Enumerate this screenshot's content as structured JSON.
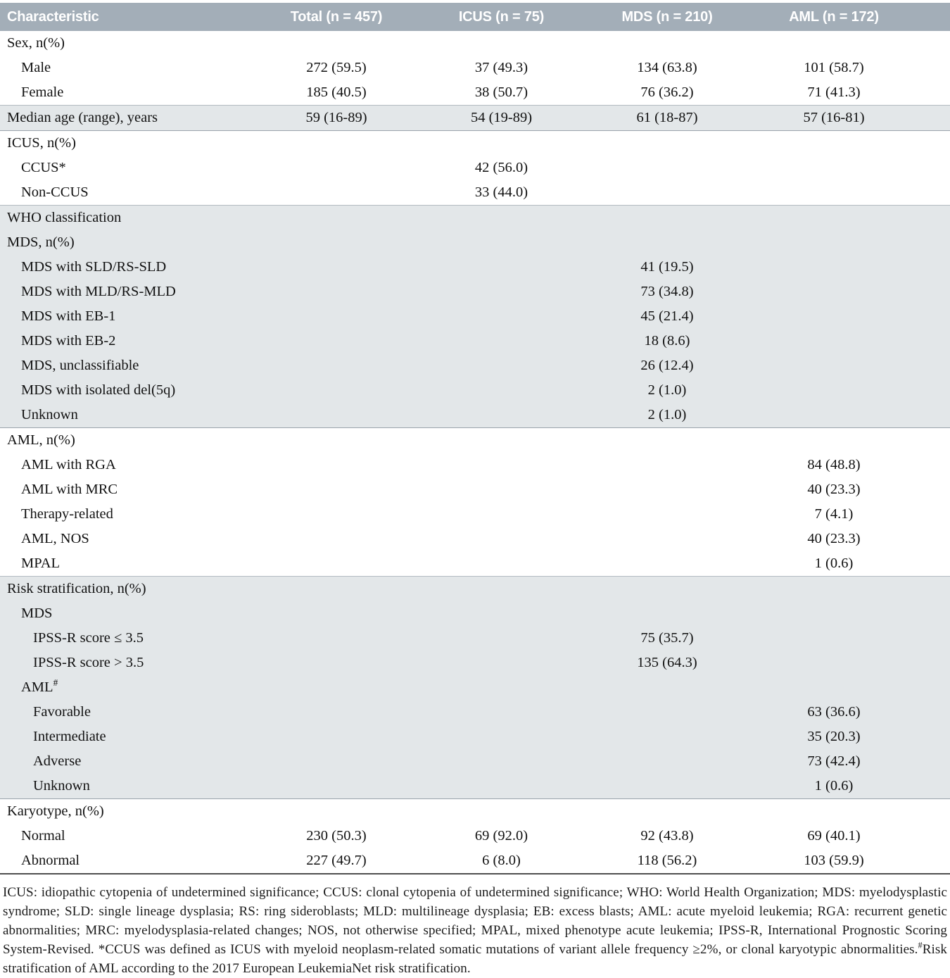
{
  "colors": {
    "header_bg": "#a3aeb8",
    "header_text": "#ffffff",
    "shaded_row_bg": "#e3e7e9",
    "table_bottom_rule": "#4f4f4f"
  },
  "table": {
    "columns": [
      "Characteristic",
      "Total (n = 457)",
      "ICUS (n = 75)",
      "MDS (n = 210)",
      "AML (n = 172)"
    ],
    "rows": [
      {
        "label": "Sex, n(%)",
        "indent": 0,
        "shade": false,
        "values": [
          "",
          "",
          "",
          ""
        ]
      },
      {
        "label": "Male",
        "indent": 1,
        "shade": false,
        "values": [
          "272 (59.5)",
          "37 (49.3)",
          "134 (63.8)",
          "101 (58.7)"
        ]
      },
      {
        "label": "Female",
        "indent": 1,
        "shade": false,
        "values": [
          "185 (40.5)",
          "38 (50.7)",
          "76 (36.2)",
          "71 (41.3)"
        ]
      },
      {
        "label": "Median age (range), years",
        "indent": 0,
        "shade": true,
        "values": [
          "59 (16-89)",
          "54 (19-89)",
          "61 (18-87)",
          "57 (16-81)"
        ]
      },
      {
        "label": "ICUS, n(%)",
        "indent": 0,
        "shade": false,
        "values": [
          "",
          "",
          "",
          ""
        ]
      },
      {
        "label": "CCUS*",
        "indent": 1,
        "shade": false,
        "values": [
          "",
          "42 (56.0)",
          "",
          ""
        ]
      },
      {
        "label": "Non-CCUS",
        "indent": 1,
        "shade": false,
        "values": [
          "",
          "33 (44.0)",
          "",
          ""
        ]
      },
      {
        "label": "WHO classification",
        "indent": 0,
        "shade": true,
        "values": [
          "",
          "",
          "",
          ""
        ]
      },
      {
        "label": "MDS, n(%)",
        "indent": 0,
        "shade": true,
        "values": [
          "",
          "",
          "",
          ""
        ]
      },
      {
        "label": "MDS with SLD/RS-SLD",
        "indent": 1,
        "shade": true,
        "values": [
          "",
          "",
          "41 (19.5)",
          ""
        ]
      },
      {
        "label": "MDS with MLD/RS-MLD",
        "indent": 1,
        "shade": true,
        "values": [
          "",
          "",
          "73 (34.8)",
          ""
        ]
      },
      {
        "label": "MDS with EB-1",
        "indent": 1,
        "shade": true,
        "values": [
          "",
          "",
          "45 (21.4)",
          ""
        ]
      },
      {
        "label": "MDS with EB-2",
        "indent": 1,
        "shade": true,
        "values": [
          "",
          "",
          "18 (8.6)",
          ""
        ]
      },
      {
        "label": "MDS, unclassifiable",
        "indent": 1,
        "shade": true,
        "values": [
          "",
          "",
          "26 (12.4)",
          ""
        ]
      },
      {
        "label": "MDS with isolated del(5q)",
        "indent": 1,
        "shade": true,
        "values": [
          "",
          "",
          "2 (1.0)",
          ""
        ]
      },
      {
        "label": "Unknown",
        "indent": 1,
        "shade": true,
        "values": [
          "",
          "",
          "2 (1.0)",
          ""
        ]
      },
      {
        "label": "AML, n(%)",
        "indent": 0,
        "shade": false,
        "values": [
          "",
          "",
          "",
          ""
        ]
      },
      {
        "label": "AML with RGA",
        "indent": 1,
        "shade": false,
        "values": [
          "",
          "",
          "",
          "84 (48.8)"
        ]
      },
      {
        "label": "AML with MRC",
        "indent": 1,
        "shade": false,
        "values": [
          "",
          "",
          "",
          "40 (23.3)"
        ]
      },
      {
        "label": "Therapy-related",
        "indent": 1,
        "shade": false,
        "values": [
          "",
          "",
          "",
          "7 (4.1)"
        ]
      },
      {
        "label": "AML, NOS",
        "indent": 1,
        "shade": false,
        "values": [
          "",
          "",
          "",
          "40 (23.3)"
        ]
      },
      {
        "label": "MPAL",
        "indent": 1,
        "shade": false,
        "values": [
          "",
          "",
          "",
          "1 (0.6)"
        ]
      },
      {
        "label": "Risk stratification, n(%)",
        "indent": 0,
        "shade": true,
        "values": [
          "",
          "",
          "",
          ""
        ]
      },
      {
        "label": "MDS",
        "indent": 1,
        "shade": true,
        "values": [
          "",
          "",
          "",
          ""
        ]
      },
      {
        "label": "IPSS-R score ≤ 3.5",
        "indent": 2,
        "shade": true,
        "values": [
          "",
          "",
          "75 (35.7)",
          ""
        ]
      },
      {
        "label": "IPSS-R score > 3.5",
        "indent": 2,
        "shade": true,
        "values": [
          "",
          "",
          "135 (64.3)",
          ""
        ]
      },
      {
        "label": "AML",
        "sup": "#",
        "indent": 1,
        "shade": true,
        "values": [
          "",
          "",
          "",
          ""
        ]
      },
      {
        "label": "Favorable",
        "indent": 2,
        "shade": true,
        "values": [
          "",
          "",
          "",
          "63 (36.6)"
        ]
      },
      {
        "label": "Intermediate",
        "indent": 2,
        "shade": true,
        "values": [
          "",
          "",
          "",
          "35 (20.3)"
        ]
      },
      {
        "label": "Adverse",
        "indent": 2,
        "shade": true,
        "values": [
          "",
          "",
          "",
          "73 (42.4)"
        ]
      },
      {
        "label": "Unknown",
        "indent": 2,
        "shade": true,
        "values": [
          "",
          "",
          "",
          "1 (0.6)"
        ]
      },
      {
        "label": "Karyotype, n(%)",
        "indent": 0,
        "shade": false,
        "values": [
          "",
          "",
          "",
          ""
        ]
      },
      {
        "label": "Normal",
        "indent": 1,
        "shade": false,
        "values": [
          "230 (50.3)",
          "69 (92.0)",
          "92 (43.8)",
          "69 (40.1)"
        ]
      },
      {
        "label": "Abnormal",
        "indent": 1,
        "shade": false,
        "values": [
          "227 (49.7)",
          "6 (8.0)",
          "118 (56.2)",
          "103 (59.9)"
        ]
      }
    ]
  },
  "footnote": {
    "segments": [
      {
        "text": "ICUS: idiopathic cytopenia of undetermined significance; CCUS: clonal cytopenia of undetermined significance; WHO: World Health Organization; MDS: myelodysplastic syndrome; SLD: single lineage dysplasia; RS: ring sideroblasts; MLD: multilineage dysplasia; EB: excess blasts; AML: acute myeloid leukemia; RGA: recurrent genetic abnormalities; MRC: myelodysplasia-related changes; NOS, not otherwise specified; MPAL, mixed phenotype acute leukemia; IPSS-R, International Prognostic Scoring System-Revised. *CCUS was defined as ICUS with myeloid neoplasm-related somatic mutations of variant allele frequency ≥2%, or clonal karyotypic abnormalities."
      },
      {
        "sup": "#"
      },
      {
        "text": "Risk stratification of AML according to the 2017 European LeukemiaNet risk stratification."
      }
    ]
  }
}
